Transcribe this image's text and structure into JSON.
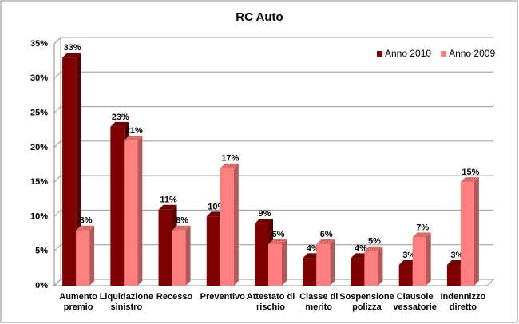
{
  "chart_data": {
    "type": "bar3d",
    "title": "RC Auto",
    "categories": [
      "Aumento premio",
      "Liquidazione sinistro",
      "Recesso",
      "Preventivo",
      "Attestato di rischio",
      "Classe di merito",
      "Sospensione polizza",
      "Clausole vessatorie",
      "Indennizzo diretto"
    ],
    "series": [
      {
        "name": "Anno 2010",
        "color": "#7f0000",
        "values": [
          33,
          23,
          11,
          10,
          9,
          4,
          4,
          3,
          3
        ],
        "value_labels": [
          "33%",
          "23%",
          "11%",
          "10%",
          "9%",
          "4%",
          "4%",
          "3%",
          "3%"
        ]
      },
      {
        "name": "Anno 2009",
        "color": "#ff7f7f",
        "values": [
          8,
          21,
          8,
          17,
          6,
          6,
          5,
          7,
          15
        ],
        "value_labels": [
          "8%",
          "21%",
          "8%",
          "17%",
          "6%",
          "6%",
          "5%",
          "7%",
          "15%"
        ]
      }
    ],
    "ylim": [
      0,
      35
    ],
    "yticks": [
      {
        "value": 0,
        "label": "0%"
      },
      {
        "value": 5,
        "label": "5%"
      },
      {
        "value": 10,
        "label": "10%"
      },
      {
        "value": 15,
        "label": "15%"
      },
      {
        "value": 20,
        "label": "20%"
      },
      {
        "value": 25,
        "label": "25%"
      },
      {
        "value": 30,
        "label": "30%"
      },
      {
        "value": 35,
        "label": "35%"
      }
    ],
    "grid": true,
    "legend": "top-right"
  }
}
